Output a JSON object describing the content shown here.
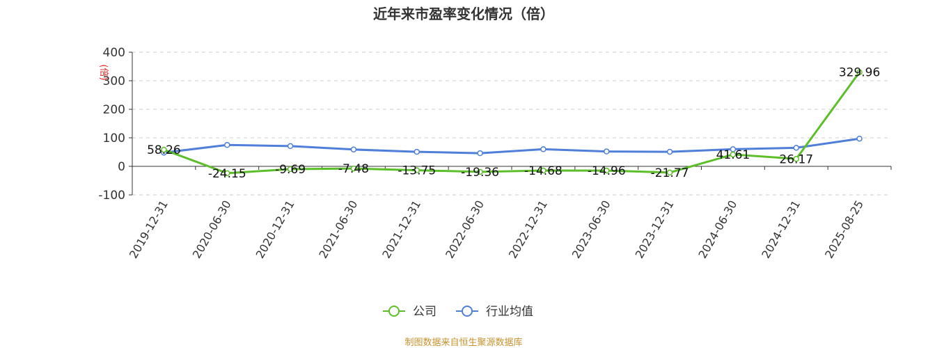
{
  "chart_data": {
    "type": "line",
    "title": "近年来市盈率变化情况（倍）",
    "ylabel": "(倍)",
    "ylim": [
      -100,
      400
    ],
    "yticks": [
      "-100",
      "0",
      "100",
      "200",
      "300",
      "400"
    ],
    "categories": [
      "2019-12-31",
      "2020-06-30",
      "2020-12-31",
      "2021-06-30",
      "2021-12-31",
      "2022-06-30",
      "2022-12-31",
      "2023-06-30",
      "2023-12-31",
      "2024-06-30",
      "2024-12-31",
      "2025-08-25"
    ],
    "series": [
      {
        "name": "公司",
        "color": "#5cbf2a",
        "values": [
          58.26,
          -24.15,
          -9.69,
          -7.48,
          -13.75,
          -19.36,
          -14.68,
          -14.96,
          -21.77,
          41.61,
          26.17,
          329.96
        ],
        "labels": [
          "58.26",
          "-24.15",
          "-9.69",
          "-7.48",
          "-13.75",
          "-19.36",
          "-14.68",
          "-14.96",
          "-21.77",
          "41.61",
          "26.17",
          "329.96"
        ]
      },
      {
        "name": "行业均值",
        "color": "#4f7fd9",
        "values": [
          48,
          75,
          71,
          59,
          51,
          46,
          60,
          52,
          51,
          60,
          65,
          97
        ]
      }
    ],
    "grid": true,
    "legend": "bottom-center"
  },
  "source": "制图数据来自恒生聚源数据库"
}
